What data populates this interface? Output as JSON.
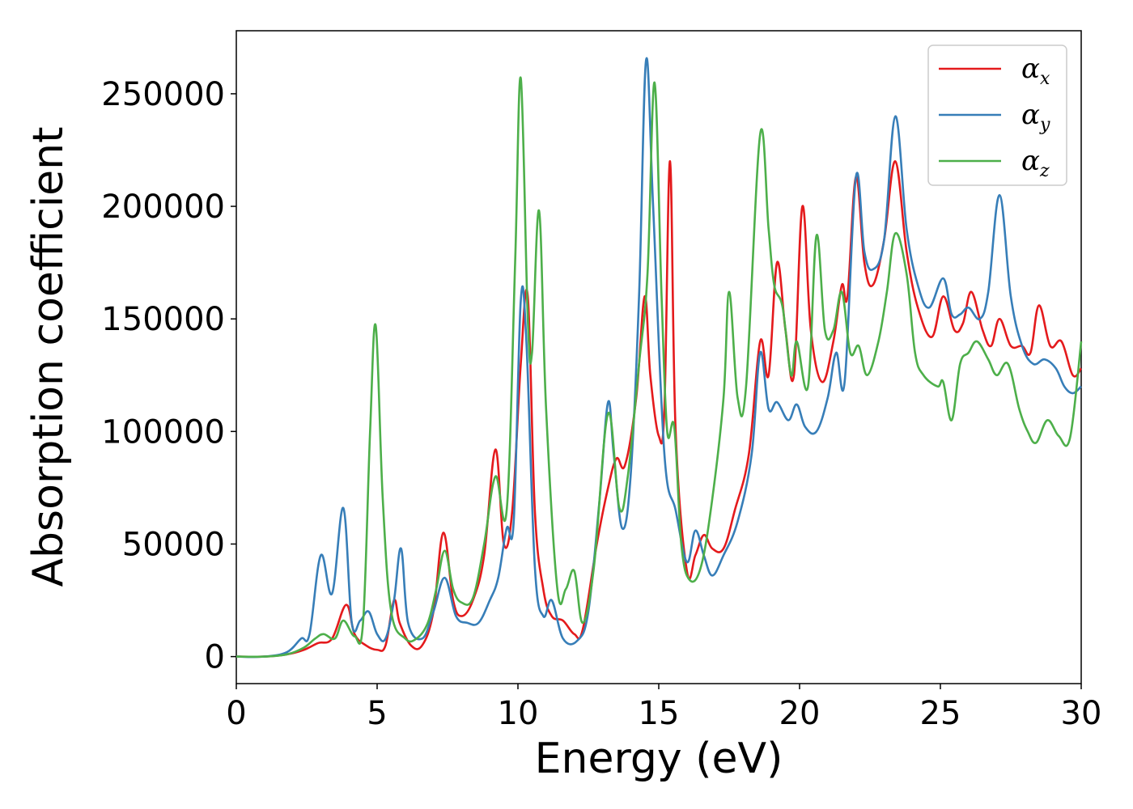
{
  "chart_data": {
    "type": "line",
    "title": "",
    "xlabel": "Energy (eV)",
    "ylabel": "Absorption coefficient",
    "xlim": [
      0,
      30
    ],
    "ylim": [
      -12000,
      278000
    ],
    "xticks": [
      0,
      5,
      10,
      15,
      20,
      25,
      30
    ],
    "yticks": [
      0,
      50000,
      100000,
      150000,
      200000,
      250000
    ],
    "grid": false,
    "legend_position": "top-right",
    "series": [
      {
        "name": "α_x",
        "symbol": "α",
        "subscript": "x",
        "color": "#e41a1c",
        "points": [
          [
            0,
            0
          ],
          [
            1,
            0
          ],
          [
            1.8,
            1000
          ],
          [
            2.4,
            3000
          ],
          [
            2.9,
            6000
          ],
          [
            3.4,
            8000
          ],
          [
            3.9,
            23000
          ],
          [
            4.2,
            10000
          ],
          [
            4.6,
            5000
          ],
          [
            5.0,
            3000
          ],
          [
            5.3,
            5000
          ],
          [
            5.6,
            25000
          ],
          [
            5.8,
            15000
          ],
          [
            6.2,
            5000
          ],
          [
            6.6,
            5000
          ],
          [
            7.0,
            20000
          ],
          [
            7.35,
            55000
          ],
          [
            7.7,
            25000
          ],
          [
            8.0,
            18000
          ],
          [
            8.4,
            25000
          ],
          [
            8.8,
            45000
          ],
          [
            9.2,
            92000
          ],
          [
            9.5,
            50000
          ],
          [
            9.8,
            65000
          ],
          [
            10.1,
            130000
          ],
          [
            10.35,
            160000
          ],
          [
            10.6,
            65000
          ],
          [
            10.9,
            30000
          ],
          [
            11.2,
            18000
          ],
          [
            11.6,
            16000
          ],
          [
            12.0,
            10000
          ],
          [
            12.3,
            12000
          ],
          [
            12.8,
            50000
          ],
          [
            13.2,
            75000
          ],
          [
            13.5,
            88000
          ],
          [
            13.8,
            85000
          ],
          [
            14.2,
            115000
          ],
          [
            14.5,
            160000
          ],
          [
            14.7,
            125000
          ],
          [
            15.0,
            98000
          ],
          [
            15.2,
            110000
          ],
          [
            15.4,
            220000
          ],
          [
            15.6,
            100000
          ],
          [
            16.0,
            38000
          ],
          [
            16.3,
            45000
          ],
          [
            16.6,
            54000
          ],
          [
            16.9,
            48000
          ],
          [
            17.3,
            48000
          ],
          [
            17.7,
            65000
          ],
          [
            18.2,
            90000
          ],
          [
            18.6,
            140000
          ],
          [
            18.9,
            125000
          ],
          [
            19.2,
            175000
          ],
          [
            19.5,
            145000
          ],
          [
            19.8,
            125000
          ],
          [
            20.1,
            200000
          ],
          [
            20.4,
            145000
          ],
          [
            20.8,
            122000
          ],
          [
            21.2,
            140000
          ],
          [
            21.5,
            165000
          ],
          [
            21.7,
            160000
          ],
          [
            22.0,
            213000
          ],
          [
            22.3,
            175000
          ],
          [
            22.6,
            165000
          ],
          [
            23.0,
            185000
          ],
          [
            23.4,
            220000
          ],
          [
            23.8,
            180000
          ],
          [
            24.2,
            155000
          ],
          [
            24.7,
            142000
          ],
          [
            25.1,
            160000
          ],
          [
            25.5,
            145000
          ],
          [
            25.8,
            148000
          ],
          [
            26.1,
            162000
          ],
          [
            26.5,
            145000
          ],
          [
            26.8,
            138000
          ],
          [
            27.1,
            150000
          ],
          [
            27.5,
            138000
          ],
          [
            27.9,
            138000
          ],
          [
            28.2,
            135000
          ],
          [
            28.5,
            156000
          ],
          [
            28.9,
            138000
          ],
          [
            29.3,
            140000
          ],
          [
            29.7,
            125000
          ],
          [
            30,
            128000
          ]
        ]
      },
      {
        "name": "α_y",
        "symbol": "α",
        "subscript": "y",
        "color": "#377eb8",
        "points": [
          [
            0,
            0
          ],
          [
            1,
            0
          ],
          [
            1.8,
            2000
          ],
          [
            2.3,
            8000
          ],
          [
            2.6,
            10000
          ],
          [
            3.0,
            45000
          ],
          [
            3.4,
            28000
          ],
          [
            3.8,
            66000
          ],
          [
            4.1,
            15000
          ],
          [
            4.4,
            16000
          ],
          [
            4.7,
            20000
          ],
          [
            5.0,
            10000
          ],
          [
            5.3,
            8000
          ],
          [
            5.6,
            25000
          ],
          [
            5.85,
            48000
          ],
          [
            6.1,
            15000
          ],
          [
            6.6,
            8000
          ],
          [
            7.0,
            20000
          ],
          [
            7.4,
            35000
          ],
          [
            7.8,
            18000
          ],
          [
            8.2,
            15000
          ],
          [
            8.6,
            15000
          ],
          [
            9.0,
            25000
          ],
          [
            9.3,
            35000
          ],
          [
            9.6,
            57000
          ],
          [
            9.85,
            60000
          ],
          [
            10.1,
            158000
          ],
          [
            10.3,
            140000
          ],
          [
            10.6,
            40000
          ],
          [
            10.9,
            18000
          ],
          [
            11.2,
            25000
          ],
          [
            11.6,
            8000
          ],
          [
            12.1,
            7000
          ],
          [
            12.5,
            20000
          ],
          [
            12.9,
            70000
          ],
          [
            13.2,
            113000
          ],
          [
            13.4,
            90000
          ],
          [
            13.7,
            57000
          ],
          [
            14.0,
            80000
          ],
          [
            14.3,
            160000
          ],
          [
            14.55,
            265000
          ],
          [
            14.8,
            200000
          ],
          [
            15.2,
            90000
          ],
          [
            15.6,
            65000
          ],
          [
            16.0,
            42000
          ],
          [
            16.3,
            56000
          ],
          [
            16.6,
            45000
          ],
          [
            16.9,
            36000
          ],
          [
            17.3,
            45000
          ],
          [
            17.8,
            60000
          ],
          [
            18.3,
            90000
          ],
          [
            18.6,
            135000
          ],
          [
            18.9,
            110000
          ],
          [
            19.2,
            113000
          ],
          [
            19.6,
            105000
          ],
          [
            19.9,
            112000
          ],
          [
            20.2,
            102000
          ],
          [
            20.6,
            100000
          ],
          [
            21.0,
            115000
          ],
          [
            21.3,
            135000
          ],
          [
            21.6,
            122000
          ],
          [
            22.0,
            213000
          ],
          [
            22.3,
            180000
          ],
          [
            22.6,
            172000
          ],
          [
            23.0,
            185000
          ],
          [
            23.4,
            240000
          ],
          [
            23.8,
            190000
          ],
          [
            24.2,
            165000
          ],
          [
            24.6,
            155000
          ],
          [
            25.1,
            168000
          ],
          [
            25.4,
            152000
          ],
          [
            25.7,
            152000
          ],
          [
            26.0,
            155000
          ],
          [
            26.4,
            150000
          ],
          [
            26.7,
            162000
          ],
          [
            27.1,
            205000
          ],
          [
            27.5,
            160000
          ],
          [
            27.9,
            138000
          ],
          [
            28.3,
            130000
          ],
          [
            28.7,
            132000
          ],
          [
            29.1,
            128000
          ],
          [
            29.4,
            120000
          ],
          [
            29.7,
            117000
          ],
          [
            30,
            120000
          ]
        ]
      },
      {
        "name": "α_z",
        "symbol": "α",
        "subscript": "z",
        "color": "#4daf4a",
        "points": [
          [
            0,
            0
          ],
          [
            1,
            0
          ],
          [
            1.8,
            1000
          ],
          [
            2.4,
            4000
          ],
          [
            2.8,
            8000
          ],
          [
            3.1,
            10000
          ],
          [
            3.5,
            8000
          ],
          [
            3.8,
            16000
          ],
          [
            4.2,
            9000
          ],
          [
            4.5,
            15000
          ],
          [
            4.75,
            100000
          ],
          [
            4.95,
            147000
          ],
          [
            5.2,
            70000
          ],
          [
            5.5,
            20000
          ],
          [
            6.0,
            8000
          ],
          [
            6.4,
            8000
          ],
          [
            6.8,
            15000
          ],
          [
            7.1,
            30000
          ],
          [
            7.4,
            47000
          ],
          [
            7.7,
            30000
          ],
          [
            8.0,
            24000
          ],
          [
            8.4,
            26000
          ],
          [
            8.8,
            50000
          ],
          [
            9.2,
            80000
          ],
          [
            9.6,
            65000
          ],
          [
            9.9,
            175000
          ],
          [
            10.1,
            257000
          ],
          [
            10.35,
            150000
          ],
          [
            10.5,
            135000
          ],
          [
            10.75,
            198000
          ],
          [
            11.0,
            110000
          ],
          [
            11.4,
            30000
          ],
          [
            11.7,
            30000
          ],
          [
            12.0,
            38000
          ],
          [
            12.3,
            15000
          ],
          [
            12.7,
            40000
          ],
          [
            13.2,
            108000
          ],
          [
            13.6,
            66000
          ],
          [
            13.9,
            80000
          ],
          [
            14.3,
            130000
          ],
          [
            14.6,
            170000
          ],
          [
            14.85,
            255000
          ],
          [
            15.1,
            160000
          ],
          [
            15.3,
            100000
          ],
          [
            15.55,
            102000
          ],
          [
            15.8,
            50000
          ],
          [
            16.1,
            34000
          ],
          [
            16.5,
            40000
          ],
          [
            16.9,
            70000
          ],
          [
            17.3,
            115000
          ],
          [
            17.5,
            162000
          ],
          [
            17.8,
            115000
          ],
          [
            18.1,
            120000
          ],
          [
            18.6,
            232000
          ],
          [
            18.9,
            190000
          ],
          [
            19.1,
            165000
          ],
          [
            19.4,
            155000
          ],
          [
            19.7,
            125000
          ],
          [
            19.9,
            140000
          ],
          [
            20.3,
            120000
          ],
          [
            20.6,
            187000
          ],
          [
            20.9,
            145000
          ],
          [
            21.2,
            145000
          ],
          [
            21.5,
            162000
          ],
          [
            21.8,
            135000
          ],
          [
            22.1,
            138000
          ],
          [
            22.4,
            125000
          ],
          [
            22.8,
            140000
          ],
          [
            23.1,
            162000
          ],
          [
            23.4,
            188000
          ],
          [
            23.8,
            170000
          ],
          [
            24.1,
            135000
          ],
          [
            24.4,
            125000
          ],
          [
            24.9,
            120000
          ],
          [
            25.1,
            122000
          ],
          [
            25.4,
            105000
          ],
          [
            25.7,
            130000
          ],
          [
            26.0,
            135000
          ],
          [
            26.3,
            140000
          ],
          [
            26.7,
            132000
          ],
          [
            27.0,
            125000
          ],
          [
            27.4,
            130000
          ],
          [
            27.8,
            110000
          ],
          [
            28.1,
            100000
          ],
          [
            28.4,
            95000
          ],
          [
            28.8,
            105000
          ],
          [
            29.2,
            98000
          ],
          [
            29.6,
            97000
          ],
          [
            30,
            140000
          ]
        ]
      }
    ]
  }
}
